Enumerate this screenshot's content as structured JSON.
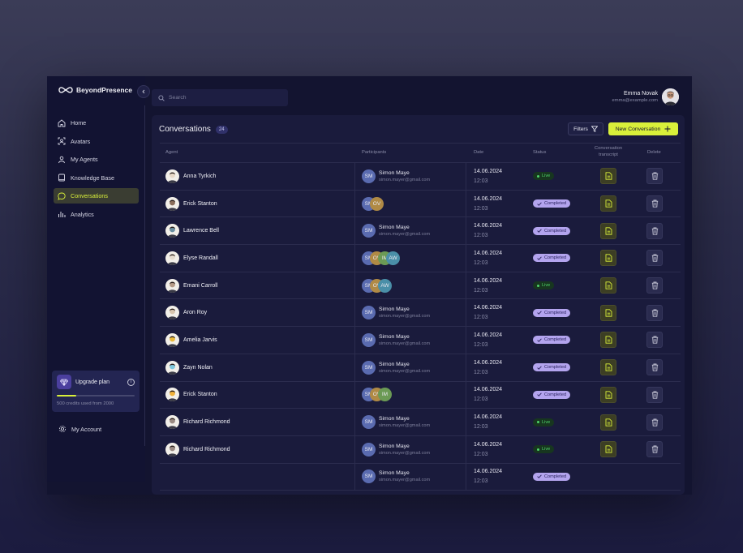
{
  "app": {
    "brand": "BeyondPresence"
  },
  "search": {
    "placeholder": "Search"
  },
  "user": {
    "name": "Emma Novak",
    "email": "emma@example.com"
  },
  "sidebar": {
    "items": [
      {
        "label": "Home",
        "icon": "home-icon"
      },
      {
        "label": "Avatars",
        "icon": "avatar-scan-icon"
      },
      {
        "label": "My Agents",
        "icon": "agents-icon"
      },
      {
        "label": "Knowledge Base",
        "icon": "book-icon"
      },
      {
        "label": "Conversations",
        "icon": "chat-icon",
        "active": true
      },
      {
        "label": "Analytics",
        "icon": "bar-chart-icon"
      }
    ],
    "upgrade": {
      "title": "Upgrade plan",
      "credits_text": "500 credits used from 2000",
      "used": 500,
      "total": 2000
    },
    "account_label": "My Account"
  },
  "main": {
    "title": "Conversations",
    "count": "24",
    "filters_label": "Filters",
    "new_label": "New Conversation",
    "columns": {
      "agent": "Agent",
      "participants": "Participants",
      "date": "Date",
      "status": "Status",
      "transcript": "Conversation transcript",
      "delete": "Delete"
    },
    "rows": [
      {
        "agent": "Anna Tyrkich",
        "avatar_color": "#e8d9c8",
        "participants": [
          "SM"
        ],
        "participant_name": "Simon Maye",
        "participant_email": "simon.mayer@gmail.com",
        "date": "14.06.2024",
        "time": "12:03",
        "status": "Live"
      },
      {
        "agent": "Erick Stanton",
        "avatar_color": "#8a6d5a",
        "participants": [
          "SM",
          "OV"
        ],
        "participant_name": "",
        "participant_email": "",
        "date": "14.06.2024",
        "time": "12:03",
        "status": "Completed"
      },
      {
        "agent": "Lawrence Bell",
        "avatar_color": "#6a8fa0",
        "participants": [
          "SM"
        ],
        "participant_name": "Simon Maye",
        "participant_email": "simon.mayer@gmail.com",
        "date": "14.06.2024",
        "time": "12:03",
        "status": "Completed"
      },
      {
        "agent": "Elyse Randall",
        "avatar_color": "#e6dccf",
        "participants": [
          "SM",
          "OV",
          "IM",
          "AW"
        ],
        "participant_name": "",
        "participant_email": "",
        "date": "14.06.2024",
        "time": "12:03",
        "status": "Completed"
      },
      {
        "agent": "Emani Carroll",
        "avatar_color": "#b59a86",
        "participants": [
          "SM",
          "OV",
          "AW"
        ],
        "participant_name": "",
        "participant_email": "",
        "date": "14.06.2024",
        "time": "12:03",
        "status": "Live"
      },
      {
        "agent": "Aron Roy",
        "avatar_color": "#d9c6ae",
        "participants": [
          "SM"
        ],
        "participant_name": "Simon Maye",
        "participant_email": "simon.mayer@gmail.com",
        "date": "14.06.2024",
        "time": "12:03",
        "status": "Completed"
      },
      {
        "agent": "Amelia Jarvis",
        "avatar_color": "#e9b93a",
        "participants": [
          "SM"
        ],
        "participant_name": "Simon Maye",
        "participant_email": "simon.mayer@gmail.com",
        "date": "14.06.2024",
        "time": "12:03",
        "status": "Completed"
      },
      {
        "agent": "Zayn Nolan",
        "avatar_color": "#7fc9dd",
        "participants": [
          "SM"
        ],
        "participant_name": "Simon Maye",
        "participant_email": "simon.mayer@gmail.com",
        "date": "14.06.2024",
        "time": "12:03",
        "status": "Completed"
      },
      {
        "agent": "Erick Stanton",
        "avatar_color": "#f0b13a",
        "participants": [
          "SM",
          "OV",
          "IM"
        ],
        "participant_name": "",
        "participant_email": "",
        "date": "14.06.2024",
        "time": "12:03",
        "status": "Completed"
      },
      {
        "agent": "Richard Richmond",
        "avatar_color": "#9a8a82",
        "participants": [
          "SM"
        ],
        "participant_name": "Simon Maye",
        "participant_email": "simon.mayer@gmail.com",
        "date": "14.06.2024",
        "time": "12:03",
        "status": "Live"
      },
      {
        "agent": "Richard Richmond",
        "avatar_color": "#9a8a82",
        "participants": [
          "SM"
        ],
        "participant_name": "Simon Maye",
        "participant_email": "simon.mayer@gmail.com",
        "date": "14.06.2024",
        "time": "12:03",
        "status": "Live"
      },
      {
        "agent": "",
        "avatar_color": "",
        "participants": [
          "SM"
        ],
        "participant_name": "Simon Maye",
        "participant_email": "simon.mayer@gmail.com",
        "date": "14.06.2024",
        "time": "12:03",
        "status": "Completed"
      }
    ],
    "chip_colors": {
      "SM": "#5a6bb0",
      "OV": "#b08a45",
      "IM": "#6b9a55",
      "AW": "#4a8fa8"
    }
  },
  "colors": {
    "accent": "#d9f03a",
    "live": "#4fd46a",
    "completed": "#b3a4ee",
    "background": "#131430"
  }
}
